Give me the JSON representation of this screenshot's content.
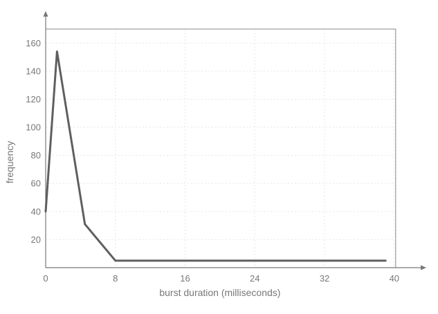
{
  "chart_data": {
    "type": "line",
    "title": "",
    "xlabel": "burst duration (milliseconds)",
    "ylabel": "frequency",
    "xlim": [
      0,
      42
    ],
    "ylim": [
      0,
      160
    ],
    "xticks": [
      0,
      8,
      16,
      24,
      32,
      40
    ],
    "yticks": [
      20,
      40,
      60,
      80,
      100,
      120,
      140,
      160
    ],
    "xtick_labels": [
      "0",
      "8",
      "16",
      "24",
      "32",
      "40"
    ],
    "ytick_labels": [
      "20",
      "40",
      "60",
      "80",
      "100",
      "120",
      "140",
      "160"
    ],
    "grid": true,
    "legend": "none",
    "series": [
      {
        "color": "#5f5f5f",
        "x": [
          0,
          1.3,
          4.5,
          8,
          16,
          24,
          32,
          39
        ],
        "y": [
          40,
          154,
          31,
          5,
          5,
          5,
          5,
          5
        ]
      }
    ]
  }
}
